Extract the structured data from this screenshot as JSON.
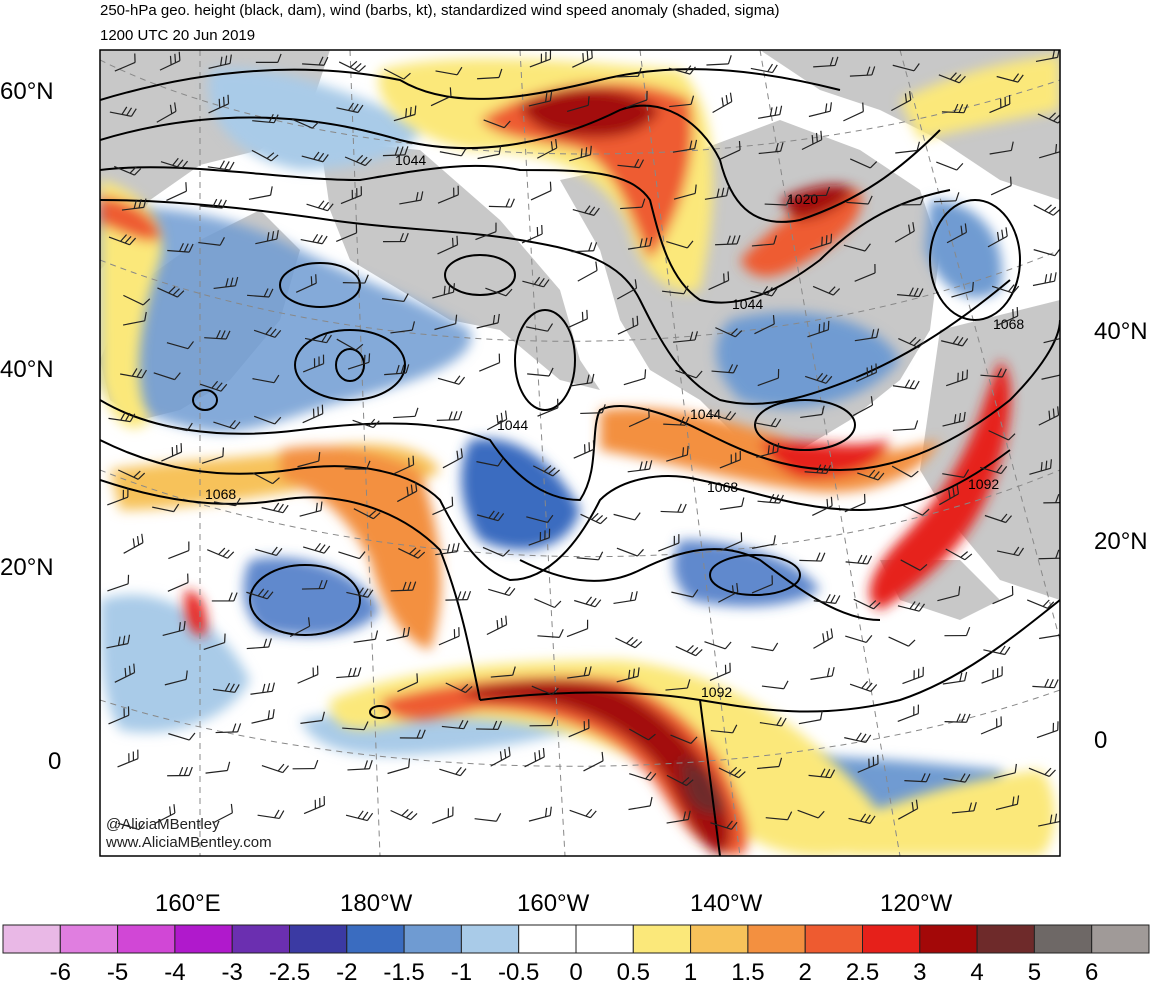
{
  "title_line1": "250-hPa geo. height (black, dam), wind (barbs, kt), standardized wind speed anomaly (shaded, sigma)",
  "title_line2": "1200 UTC 20 Jun 2019",
  "lat_labels_left": [
    "60°N",
    "40°N",
    "20°N",
    "0"
  ],
  "lat_labels_right": [
    "40°N",
    "20°N",
    "0"
  ],
  "lon_labels": [
    "160°E",
    "180°W",
    "160°W",
    "140°W",
    "120°W"
  ],
  "contour_labels": [
    "1044",
    "1020",
    "1044",
    "1068",
    "1044",
    "1044",
    "1068",
    "1068",
    "1092",
    "1092"
  ],
  "credit_line1": "@AliciaMBentley",
  "credit_line2": "www.AliciaMBentley.com",
  "colorbar": {
    "labels": [
      "-6",
      "-5",
      "-4",
      "-3",
      "-2.5",
      "-2",
      "-1.5",
      "-1",
      "-0.5",
      "0",
      "0.5",
      "1",
      "1.5",
      "2",
      "2.5",
      "3",
      "4",
      "5",
      "6"
    ],
    "colors": [
      "#e9b8e6",
      "#e07ee0",
      "#d147d6",
      "#b019cc",
      "#6b2fb0",
      "#3b3aa3",
      "#3a6cc0",
      "#6f9bd2",
      "#a9cbe8",
      "#ffffff",
      "#ffffff",
      "#fbe87a",
      "#f7c25a",
      "#f39040",
      "#ee5b30",
      "#e6201a",
      "#a30808",
      "#6e2a2a",
      "#6e6866",
      "#a09a98"
    ]
  },
  "colors": {
    "land": "#c8c8c8",
    "contour": "#000000"
  }
}
